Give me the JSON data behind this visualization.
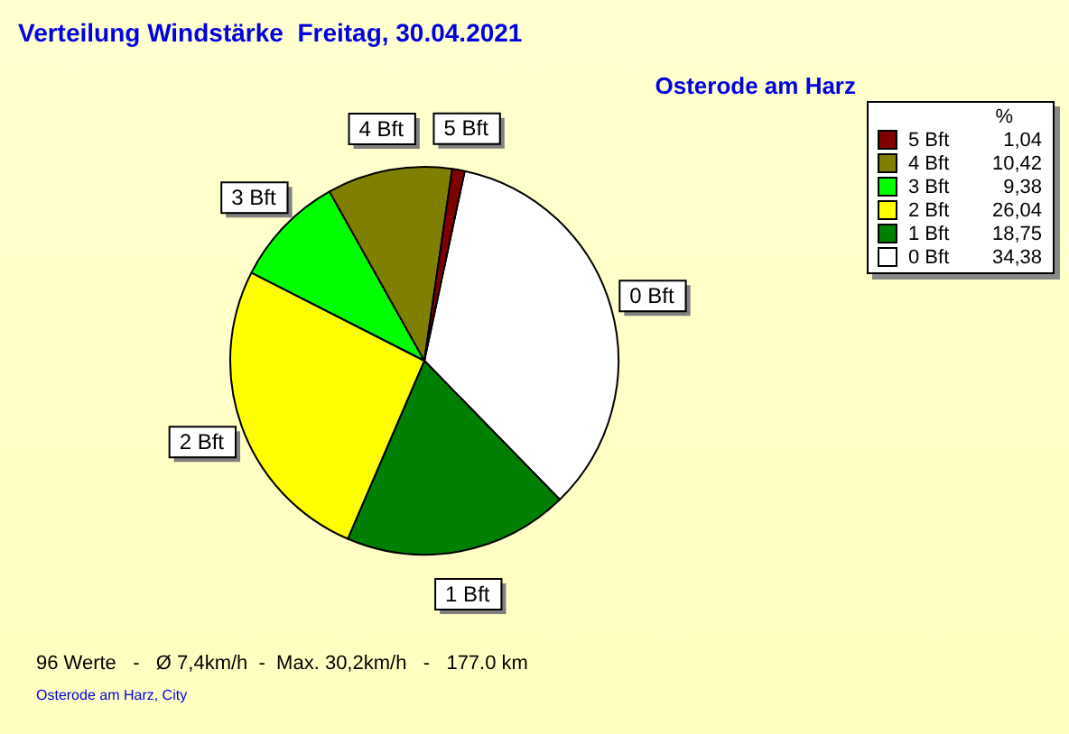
{
  "chart_data": {
    "type": "pie",
    "title": "Verteilung Windstärke  Freitag, 30.04.2021",
    "subtitle": "Osterode am Harz",
    "categories": [
      "0 Bft",
      "1 Bft",
      "2 Bft",
      "3 Bft",
      "4 Bft",
      "5 Bft"
    ],
    "values": [
      34.38,
      18.75,
      26.04,
      9.38,
      10.42,
      1.04
    ],
    "value_labels": [
      "34,38",
      "18,75",
      "26,04",
      "9,38",
      "10,42",
      "1,04"
    ],
    "colors": [
      "#ffffff",
      "#008000",
      "#ffff00",
      "#00ff00",
      "#808000",
      "#800000"
    ],
    "legend": "top right",
    "legend_title": "%",
    "annotations": [
      "96 Werte   -   Ø 7,4km/h  -  Max. 30,2km/h   -   177.0 km",
      "Osterode am Harz, City"
    ]
  }
}
